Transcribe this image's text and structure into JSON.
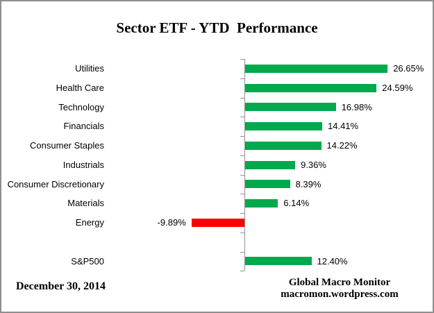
{
  "title": "Sector ETF - YTD  Performance",
  "date_label": "December 30, 2014",
  "attribution": {
    "line1": "Global Macro Monitor",
    "line2": "macromon.wordpress.com"
  },
  "colors": {
    "positive_bar": "#00A94E",
    "negative_bar": "#FF0000",
    "axis": "#919191",
    "text": "#000000"
  },
  "chart_data": {
    "type": "bar",
    "orientation": "horizontal",
    "title": "Sector ETF - YTD  Performance",
    "categories": [
      "Utilities",
      "Health Care",
      "Technology",
      "Financials",
      "Consumer Staples",
      "Industrials",
      "Consumer Discretionary",
      "Materials",
      "Energy",
      "",
      "S&P500"
    ],
    "values": [
      26.65,
      24.59,
      16.98,
      14.41,
      14.22,
      9.36,
      8.39,
      6.14,
      -9.89,
      null,
      12.4
    ],
    "value_labels": [
      "26.65%",
      "24.59%",
      "16.98%",
      "14.41%",
      "14.22%",
      "9.36%",
      "8.39%",
      "6.14%",
      "-9.89%",
      "",
      "12.40%"
    ],
    "value_format": "percent",
    "xlabel": "",
    "ylabel": "",
    "axis_tick_labels_visible": false,
    "gridlines": false,
    "legend": "none",
    "baseline_axis": true
  }
}
